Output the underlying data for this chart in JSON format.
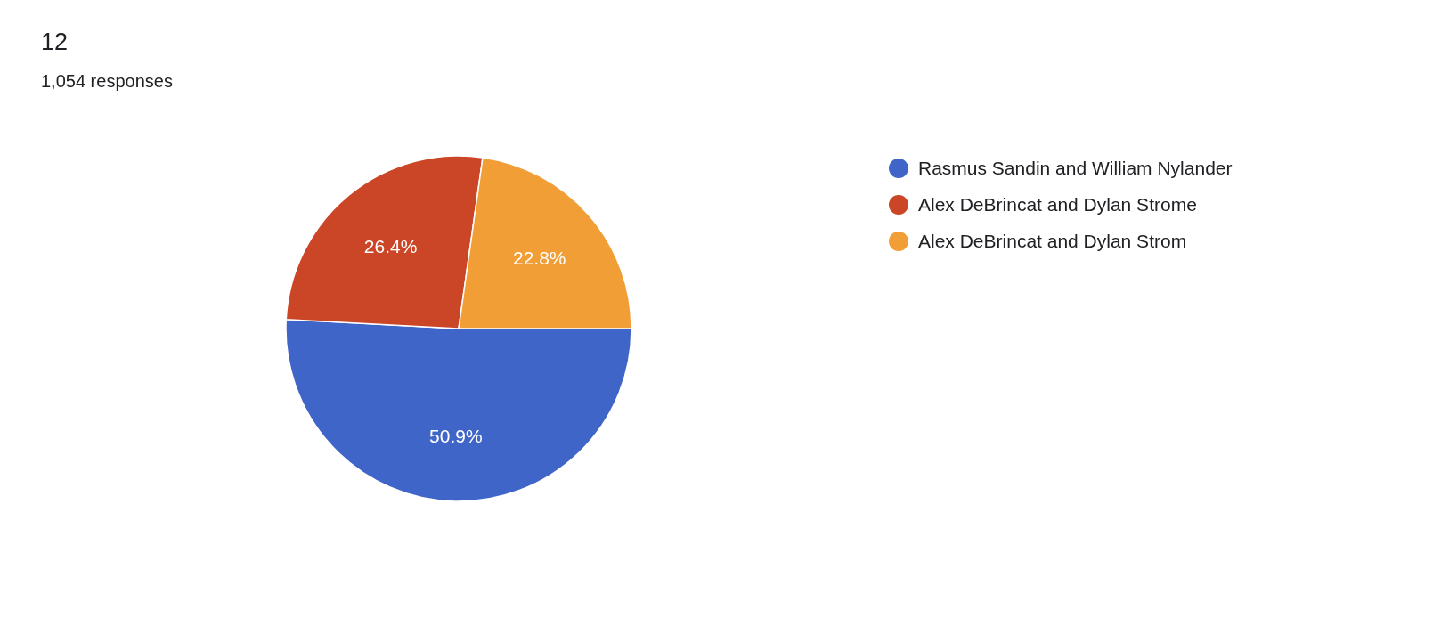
{
  "chart_data": {
    "type": "pie",
    "title": "12",
    "subtitle": "1,054 responses",
    "categories": [
      "Rasmus Sandin and William Nylander",
      "Alex DeBrincat and Dylan Strome",
      "Alex DeBrincat and Dylan Strom"
    ],
    "values": [
      50.9,
      26.4,
      22.8
    ],
    "colors": [
      "#4065c8",
      "#cb4527",
      "#f19e37"
    ],
    "value_labels": [
      "50.9%",
      "26.4%",
      "22.8%"
    ],
    "legend": "right"
  }
}
